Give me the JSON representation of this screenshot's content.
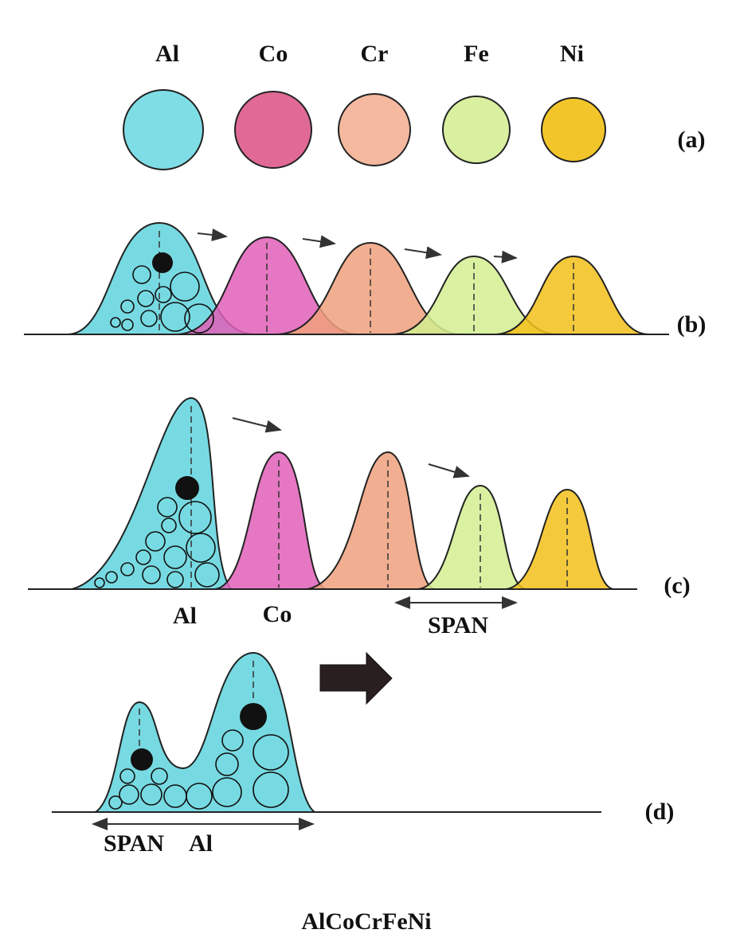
{
  "elements": [
    "Al",
    "Co",
    "Cr",
    "Fe",
    "Ni"
  ],
  "panel_labels": [
    "(a)",
    "(b)",
    "(c)",
    "(d)"
  ],
  "panel_c": {
    "labels": [
      "Al",
      "Co"
    ],
    "span": "SPAN"
  },
  "panel_d": {
    "span": "SPAN",
    "label": "Al"
  },
  "title": "AlCoCrFeNi"
}
